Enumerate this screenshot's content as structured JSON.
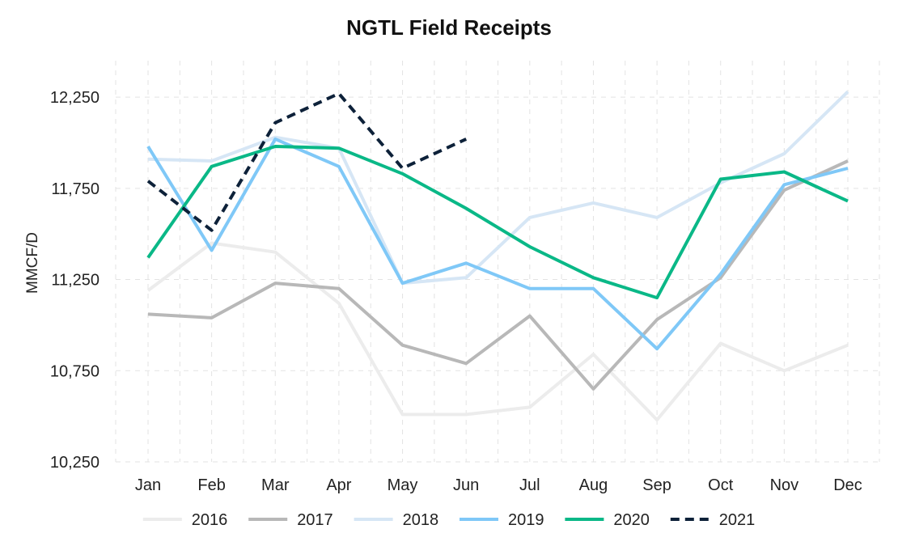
{
  "chart_data": {
    "type": "line",
    "title": "NGTL Field Receipts",
    "xlabel": "",
    "ylabel": "MMCF/D",
    "categories": [
      "Jan",
      "Feb",
      "Mar",
      "Apr",
      "May",
      "Jun",
      "Jul",
      "Aug",
      "Sep",
      "Oct",
      "Nov",
      "Dec"
    ],
    "ylim": [
      10250,
      12450
    ],
    "yticks": [
      10250,
      10750,
      11250,
      11750,
      12250
    ],
    "ytick_labels": [
      "10,250",
      "10,750",
      "11,250",
      "11,750",
      "12,250"
    ],
    "grid": true,
    "legend_position": "bottom",
    "series": [
      {
        "name": "2016",
        "color": "#ececec",
        "dashed": false,
        "values": [
          11190,
          11450,
          11400,
          11120,
          10510,
          10510,
          10550,
          10840,
          10480,
          10900,
          10750,
          10890
        ]
      },
      {
        "name": "2017",
        "color": "#b8b8b8",
        "dashed": false,
        "values": [
          11060,
          11040,
          11230,
          11200,
          10890,
          10790,
          11050,
          10650,
          11030,
          11260,
          11740,
          11900
        ]
      },
      {
        "name": "2018",
        "color": "#d6e6f5",
        "dashed": false,
        "values": [
          11910,
          11900,
          12030,
          11970,
          11230,
          11260,
          11590,
          11670,
          11590,
          11780,
          11940,
          12280
        ]
      },
      {
        "name": "2019",
        "color": "#7fc8f7",
        "dashed": false,
        "values": [
          11980,
          11410,
          12020,
          11870,
          11230,
          11340,
          11200,
          11200,
          10870,
          11280,
          11770,
          11860
        ]
      },
      {
        "name": "2020",
        "color": "#0ab887",
        "dashed": false,
        "values": [
          11370,
          11870,
          11980,
          11970,
          11830,
          11640,
          11430,
          11260,
          11150,
          11800,
          11840,
          11680
        ]
      },
      {
        "name": "2021",
        "color": "#0d2139",
        "dashed": true,
        "values": [
          11790,
          11520,
          12110,
          12270,
          11860,
          12020,
          null,
          null,
          null,
          null,
          null,
          null
        ]
      }
    ]
  }
}
